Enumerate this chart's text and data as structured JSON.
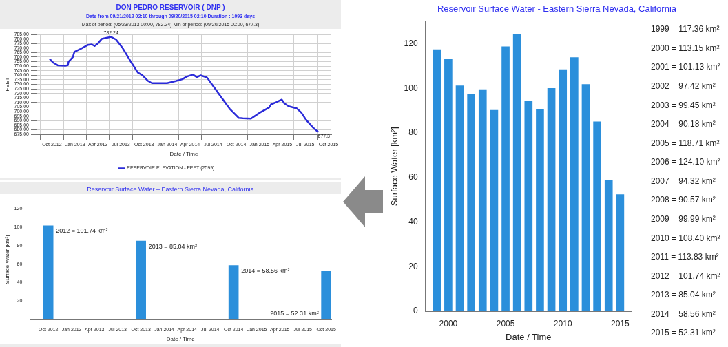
{
  "chart_data": [
    {
      "type": "line",
      "title": "DON PEDRO RESERVOIR ( DNP )",
      "subtitle": "Date from 09/21/2012 02:10 through 09/20/2015 02:10 Duration : 1093 days",
      "xlabel": "Date / Time",
      "ylabel": "FEET",
      "annotations": [
        "Max of period: (05/23/2013 00:00, 782.24)  Min of period: (09/20/2015 00:00, 677.3)",
        {
          "text": "782.24",
          "x": "2013-05-23",
          "y": 782.24
        },
        {
          "text": "677.3",
          "x": "2015-08-22",
          "y": 677.3
        }
      ],
      "series": [
        {
          "name": "RESERVOIR ELEVATION - FEET (2599)",
          "color": "#2b2bd9",
          "x": [
            "2012-09-22",
            "2012-10-07",
            "2012-10-24",
            "2012-11-23",
            "2012-12-03",
            "2012-12-06",
            "2012-12-23",
            "2012-12-29",
            "2013-01-22",
            "2013-02-21",
            "2013-03-08",
            "2013-03-19",
            "2013-03-31",
            "2013-04-16",
            "2013-05-05",
            "2013-05-23",
            "2013-06-12",
            "2013-07-08",
            "2013-08-07",
            "2013-09-06",
            "2013-09-23",
            "2013-10-15",
            "2013-11-01",
            "2013-12-31",
            "2014-02-03",
            "2014-03-01",
            "2014-03-18",
            "2014-04-12",
            "2014-04-28",
            "2014-05-13",
            "2014-06-07",
            "2014-07-03",
            "2014-08-06",
            "2014-09-05",
            "2014-10-01",
            "2014-10-11",
            "2014-10-27",
            "2014-11-28",
            "2015-01-03",
            "2015-02-08",
            "2015-02-15",
            "2015-03-08",
            "2015-03-30",
            "2015-04-09",
            "2015-04-26",
            "2015-05-29",
            "2015-06-15",
            "2015-07-04",
            "2015-08-01",
            "2015-08-22"
          ],
          "values": [
            758,
            753.7,
            750.9,
            750.5,
            751,
            755,
            760,
            765.8,
            769,
            773.5,
            774,
            772.3,
            774.8,
            780,
            781.2,
            782.24,
            779.3,
            770,
            756,
            743,
            740.3,
            734,
            731.3,
            731.3,
            733.6,
            735.6,
            738.4,
            740.7,
            737.9,
            739.9,
            737.5,
            727.5,
            714.5,
            703,
            695.7,
            693,
            692.6,
            692.3,
            699,
            704.5,
            707.8,
            710.3,
            713.2,
            709.1,
            705.9,
            703.4,
            699,
            691,
            682.3,
            677.3
          ]
        }
      ],
      "xlim": [
        "2012-08-01",
        "2015-10-12"
      ],
      "xticks": [
        {
          "value": "2012-10-01",
          "label": "Oct 2012"
        },
        {
          "value": "2013-01-01",
          "label": "Jan 2013"
        },
        {
          "value": "2013-04-01",
          "label": "Apr 2013"
        },
        {
          "value": "2013-07-01",
          "label": "Jul 2013"
        },
        {
          "value": "2013-10-01",
          "label": "Oct 2013"
        },
        {
          "value": "2014-01-01",
          "label": "Jan 2014"
        },
        {
          "value": "2014-04-01",
          "label": "Apr 2014"
        },
        {
          "value": "2014-07-01",
          "label": "Jul 2014"
        },
        {
          "value": "2014-10-01",
          "label": "Oct 2014"
        },
        {
          "value": "2015-01-01",
          "label": "Jan 2015"
        },
        {
          "value": "2015-04-01",
          "label": "Apr 2015"
        },
        {
          "value": "2015-07-01",
          "label": "Jul 2015"
        },
        {
          "value": "2015-10-01",
          "label": "Oct 2015"
        }
      ],
      "ylim": [
        675,
        785
      ],
      "yticks": [
        {
          "value": 675,
          "label": "675.00"
        },
        {
          "value": 680,
          "label": "680.00"
        },
        {
          "value": 685,
          "label": "685.00"
        },
        {
          "value": 690,
          "label": "690.00"
        },
        {
          "value": 695,
          "label": "695.00"
        },
        {
          "value": 700,
          "label": "700.00"
        },
        {
          "value": 705,
          "label": "705.00"
        },
        {
          "value": 710,
          "label": "710.00"
        },
        {
          "value": 715,
          "label": "715.00"
        },
        {
          "value": 720,
          "label": "720.00"
        },
        {
          "value": 725,
          "label": "725.00"
        },
        {
          "value": 730,
          "label": "730.00"
        },
        {
          "value": 735,
          "label": "735.00"
        },
        {
          "value": 740,
          "label": "740.00"
        },
        {
          "value": 745,
          "label": "745.00"
        },
        {
          "value": 750,
          "label": "750.00"
        },
        {
          "value": 755,
          "label": "755.00"
        },
        {
          "value": 760,
          "label": "760.00"
        },
        {
          "value": 765,
          "label": "765.00"
        },
        {
          "value": 770,
          "label": "770.00"
        },
        {
          "value": 775,
          "label": "775.00"
        },
        {
          "value": 780,
          "label": "780.00"
        },
        {
          "value": 785,
          "label": "785.00"
        }
      ],
      "grid": true,
      "legend": "bottom",
      "marker": "none",
      "line_style": "solid"
    },
    {
      "type": "bar",
      "title": "Reservoir Surface Water – Eastern Sierra Nevada, California",
      "xlabel": "Date / Time",
      "ylabel": "Surface Water [km²]",
      "x": [
        "2012-10-01",
        "2013-10-01",
        "2014-10-01",
        "2015-10-01"
      ],
      "values": [
        101.74,
        85.04,
        58.56,
        52.31
      ],
      "color": "#2b8fdb",
      "annotations": [
        {
          "text": "2012 = 101.74 km²",
          "x": "2012-10-01",
          "y": 101.74
        },
        {
          "text": "2013 = 85.04 km²",
          "x": "2013-10-01",
          "y": 85.04
        },
        {
          "text": "2014 = 58.56 km²",
          "x": "2014-10-01",
          "y": 58.56
        },
        {
          "text": "2015 = 52.31 km²",
          "x": "2015-10-01",
          "y": 0
        }
      ],
      "xlim": [
        "2012-07-20",
        "2015-10-21"
      ],
      "xticks": [
        {
          "value": "2012-10-01",
          "label": "Oct 2012"
        },
        {
          "value": "2013-01-01",
          "label": "Jan 2013"
        },
        {
          "value": "2013-04-01",
          "label": "Apr 2013"
        },
        {
          "value": "2013-07-01",
          "label": "Jul 2013"
        },
        {
          "value": "2013-10-01",
          "label": "Oct 2013"
        },
        {
          "value": "2014-01-01",
          "label": "Jan 2014"
        },
        {
          "value": "2014-04-01",
          "label": "Apr 2014"
        },
        {
          "value": "2014-07-01",
          "label": "Jul 2014"
        },
        {
          "value": "2014-10-01",
          "label": "Oct 2014"
        },
        {
          "value": "2015-01-01",
          "label": "Jan 2015"
        },
        {
          "value": "2015-04-01",
          "label": "Apr 2015"
        },
        {
          "value": "2015-07-01",
          "label": "Jul 2015"
        },
        {
          "value": "2015-10-01",
          "label": "Oct 2015"
        }
      ],
      "ylim": [
        0,
        130
      ],
      "yticks": [
        20,
        40,
        60,
        80,
        100,
        120
      ],
      "grid": false,
      "legend": false
    },
    {
      "type": "bar",
      "title": "Reservoir Surface Water - Eastern Sierra Nevada, California",
      "xlabel": "Date / Time",
      "ylabel": "Surface Water [km²]",
      "x": [
        1999,
        2000,
        2001,
        2002,
        2003,
        2004,
        2005,
        2006,
        2007,
        2008,
        2009,
        2010,
        2011,
        2012,
        2013,
        2014,
        2015
      ],
      "values": [
        117.36,
        113.15,
        101.13,
        97.42,
        99.45,
        90.18,
        118.71,
        124.1,
        94.32,
        90.57,
        99.99,
        108.4,
        113.83,
        101.74,
        85.04,
        58.56,
        52.31
      ],
      "color": "#2b8fdb",
      "annotations": [
        "1999 = 117.36 km²",
        "2000 = 113.15 km²",
        "2001 = 101.13 km²",
        "2002 = 97.42 km²",
        "2003 = 99.45 km²",
        "2004 = 90.18 km²",
        "2005 = 118.71 km²",
        "2006 = 124.10 km²",
        "2007 = 94.32 km²",
        "2008 = 90.57 km²",
        "2009 = 99.99 km²",
        "2010 = 108.40 km²",
        "2011 = 113.83 km²",
        "2012 = 101.74 km²",
        "2013 = 85.04 km²",
        "2014 = 58.56 km²",
        "2015 = 52.31 km²"
      ],
      "xlim": [
        1998,
        2016
      ],
      "xticks": [
        2000,
        2005,
        2010,
        2015
      ],
      "ylim": [
        0,
        130
      ],
      "yticks": [
        0,
        20,
        40,
        60,
        80,
        100,
        120
      ],
      "grid": false,
      "legend": false
    }
  ]
}
